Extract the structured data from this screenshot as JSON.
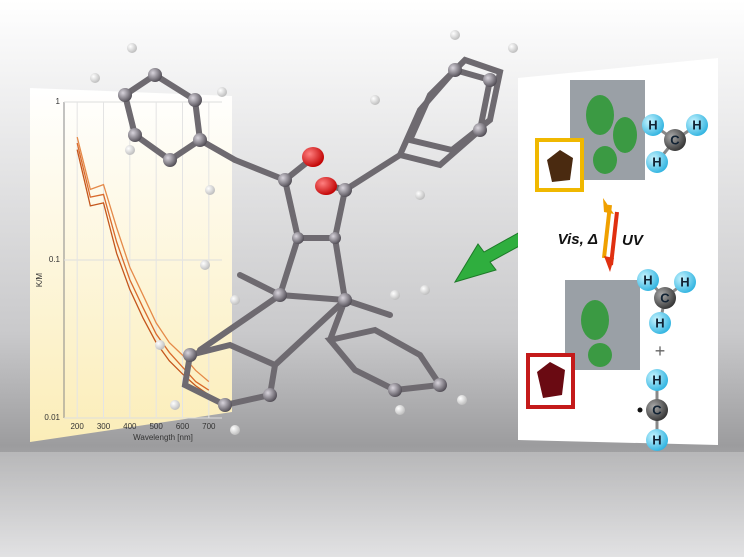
{
  "chart_data": {
    "type": "line",
    "y_label": "K/M",
    "x_label": "Wavelength [nm]",
    "x": [
      200,
      250,
      300,
      350,
      400,
      450,
      500,
      550,
      600,
      650,
      700
    ],
    "series": [
      {
        "color": "#e58a4a",
        "values": [
          0.6,
          0.28,
          0.3,
          0.16,
          0.09,
          0.06,
          0.04,
          0.03,
          0.025,
          0.02,
          0.017
        ]
      },
      {
        "color": "#d96a2c",
        "values": [
          0.55,
          0.25,
          0.26,
          0.13,
          0.075,
          0.05,
          0.034,
          0.026,
          0.021,
          0.017,
          0.015
        ]
      },
      {
        "color": "#c4561c",
        "values": [
          0.5,
          0.22,
          0.23,
          0.11,
          0.065,
          0.043,
          0.03,
          0.023,
          0.019,
          0.016,
          0.014
        ]
      }
    ],
    "xlim": [
      150,
      750
    ],
    "xticks": [
      200,
      300,
      400,
      500,
      600,
      700
    ],
    "ylim": [
      0.01,
      1
    ],
    "yticks": [
      0.01,
      0.1,
      1
    ],
    "log_y": true,
    "grid": true
  },
  "scheme": {
    "forward_label": "Vis, Δ",
    "reverse_label": "UV",
    "top_fragment": [
      "H",
      "C",
      "H",
      "H"
    ],
    "bottom_fragment": [
      "H",
      "C",
      "H",
      "H"
    ],
    "plus": "+",
    "radical_fragment": [
      "H",
      "C",
      "H"
    ]
  }
}
